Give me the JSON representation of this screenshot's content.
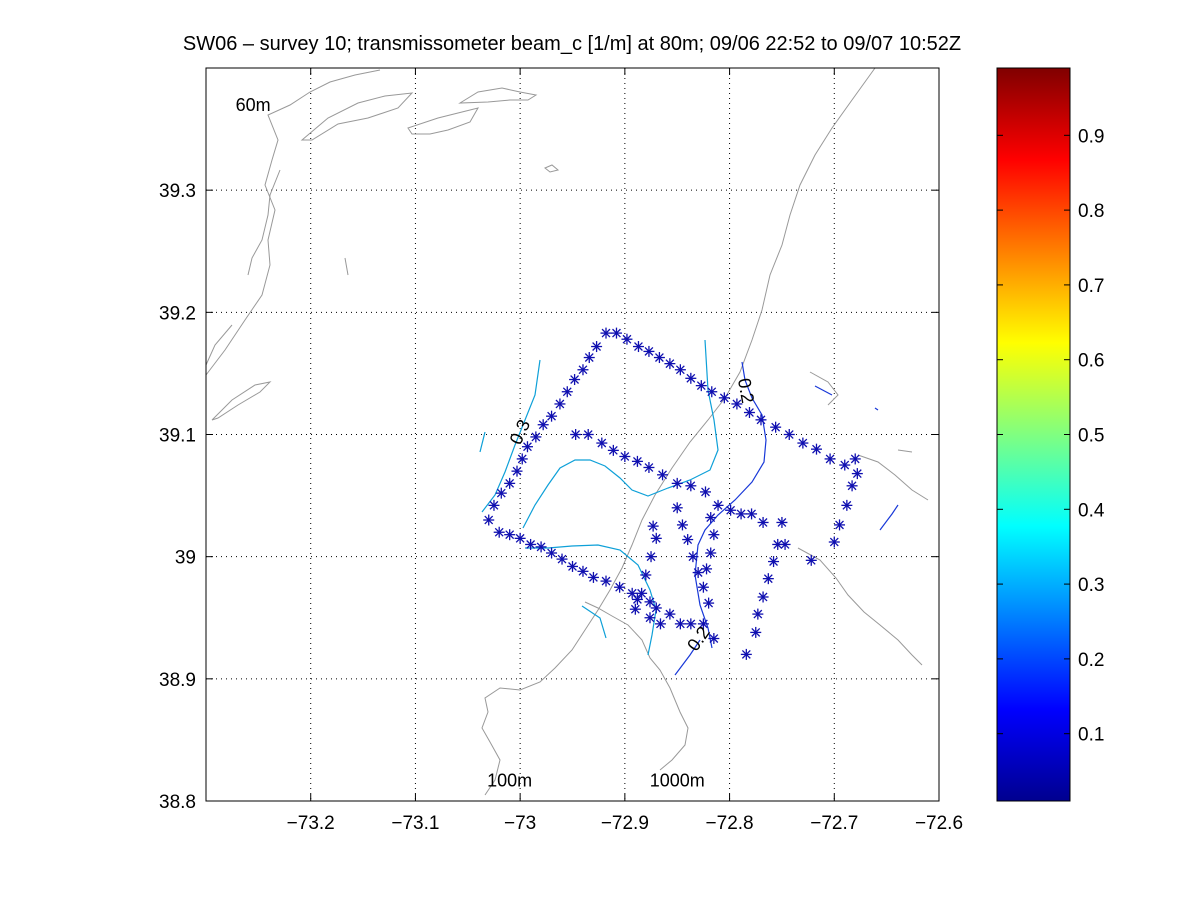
{
  "chart_data": {
    "type": "contour",
    "title": "SW06 – survey 10; transmissometer beam_c [1/m] at 80m; 09/06 22:52 to 09/07 10:52Z",
    "xlim": [
      -73.3,
      -72.6
    ],
    "ylim": [
      38.8,
      39.4
    ],
    "x_ticks": [
      -73.2,
      -73.1,
      -73.0,
      -72.9,
      -72.8,
      -72.7,
      -72.6
    ],
    "x_tick_labels": [
      "−73.2",
      "−73.1",
      "−73",
      "−72.9",
      "−72.8",
      "−72.7",
      "−72.6"
    ],
    "y_ticks": [
      38.8,
      38.9,
      39.0,
      39.1,
      39.2,
      39.3
    ],
    "y_tick_labels": [
      "38.8",
      "38.9",
      "39",
      "39.1",
      "39.2",
      "39.3"
    ],
    "grid": true,
    "colorbar": {
      "colormap": "jet",
      "range": [
        0.01,
        0.99
      ],
      "ticks": [
        0.1,
        0.2,
        0.3,
        0.4,
        0.5,
        0.6,
        0.7,
        0.8,
        0.9
      ],
      "tick_labels": [
        "0.1",
        "0.2",
        "0.3",
        "0.4",
        "0.5",
        "0.6",
        "0.7",
        "0.8",
        "0.9"
      ]
    },
    "bathymetry_labels": [
      {
        "text": "60m",
        "x": -73.255,
        "y": 39.365
      },
      {
        "text": "100m",
        "x": -73.01,
        "y": 38.812
      },
      {
        "text": "1000m",
        "x": -72.85,
        "y": 38.812
      }
    ],
    "contour_labels": [
      {
        "text": "0.3",
        "x": -72.995,
        "y": 39.1,
        "angle": -65
      },
      {
        "text": "0.2",
        "x": -72.825,
        "y": 38.93,
        "angle": -55
      },
      {
        "text": "0.2",
        "x": -72.79,
        "y": 39.135,
        "angle": 80
      }
    ],
    "stations": [
      [
        -73.03,
        39.03
      ],
      [
        -73.025,
        39.042
      ],
      [
        -73.018,
        39.052
      ],
      [
        -73.01,
        39.06
      ],
      [
        -73.003,
        39.07
      ],
      [
        -72.998,
        39.08
      ],
      [
        -72.993,
        39.09
      ],
      [
        -72.985,
        39.098
      ],
      [
        -72.978,
        39.108
      ],
      [
        -72.97,
        39.115
      ],
      [
        -72.962,
        39.125
      ],
      [
        -72.955,
        39.135
      ],
      [
        -72.948,
        39.145
      ],
      [
        -72.94,
        39.153
      ],
      [
        -72.934,
        39.163
      ],
      [
        -72.927,
        39.172
      ],
      [
        -72.918,
        39.183
      ],
      [
        -72.908,
        39.183
      ],
      [
        -72.898,
        39.178
      ],
      [
        -72.887,
        39.172
      ],
      [
        -72.877,
        39.168
      ],
      [
        -72.867,
        39.163
      ],
      [
        -72.857,
        39.158
      ],
      [
        -72.847,
        39.153
      ],
      [
        -72.837,
        39.146
      ],
      [
        -72.827,
        39.14
      ],
      [
        -72.817,
        39.135
      ],
      [
        -72.805,
        39.13
      ],
      [
        -72.793,
        39.125
      ],
      [
        -72.781,
        39.118
      ],
      [
        -72.77,
        39.112
      ],
      [
        -72.756,
        39.106
      ],
      [
        -72.743,
        39.1
      ],
      [
        -72.73,
        39.093
      ],
      [
        -72.717,
        39.088
      ],
      [
        -72.704,
        39.08
      ],
      [
        -72.69,
        39.075
      ],
      [
        -72.678,
        39.068
      ],
      [
        -72.68,
        39.08
      ],
      [
        -72.683,
        39.058
      ],
      [
        -72.688,
        39.042
      ],
      [
        -72.695,
        39.026
      ],
      [
        -72.7,
        39.012
      ],
      [
        -72.722,
        38.997
      ],
      [
        -72.747,
        39.01
      ],
      [
        -72.75,
        39.028
      ],
      [
        -72.768,
        39.028
      ],
      [
        -72.779,
        39.035
      ],
      [
        -72.789,
        39.035
      ],
      [
        -72.799,
        39.038
      ],
      [
        -72.811,
        39.042
      ],
      [
        -72.823,
        39.053
      ],
      [
        -72.837,
        39.058
      ],
      [
        -72.85,
        39.06
      ],
      [
        -72.864,
        39.067
      ],
      [
        -72.877,
        39.073
      ],
      [
        -72.888,
        39.078
      ],
      [
        -72.9,
        39.082
      ],
      [
        -72.911,
        39.087
      ],
      [
        -72.922,
        39.093
      ],
      [
        -72.935,
        39.1
      ],
      [
        -72.947,
        39.1
      ],
      [
        -73.02,
        39.02
      ],
      [
        -73.01,
        39.018
      ],
      [
        -73.0,
        39.015
      ],
      [
        -72.99,
        39.01
      ],
      [
        -72.98,
        39.008
      ],
      [
        -72.97,
        39.003
      ],
      [
        -72.96,
        38.998
      ],
      [
        -72.95,
        38.992
      ],
      [
        -72.94,
        38.988
      ],
      [
        -72.93,
        38.983
      ],
      [
        -72.918,
        38.98
      ],
      [
        -72.905,
        38.975
      ],
      [
        -72.893,
        38.97
      ],
      [
        -72.888,
        38.965
      ],
      [
        -72.876,
        38.963
      ],
      [
        -72.87,
        38.958
      ],
      [
        -72.857,
        38.953
      ],
      [
        -72.847,
        38.945
      ],
      [
        -72.837,
        38.945
      ],
      [
        -72.825,
        38.945
      ],
      [
        -72.815,
        38.933
      ],
      [
        -72.82,
        38.962
      ],
      [
        -72.825,
        38.975
      ],
      [
        -72.83,
        38.987
      ],
      [
        -72.835,
        39.0
      ],
      [
        -72.84,
        39.014
      ],
      [
        -72.845,
        39.026
      ],
      [
        -72.85,
        39.04
      ],
      [
        -72.873,
        39.025
      ],
      [
        -72.87,
        39.015
      ],
      [
        -72.875,
        39.0
      ],
      [
        -72.88,
        38.985
      ],
      [
        -72.884,
        38.97
      ],
      [
        -72.89,
        38.957
      ],
      [
        -72.876,
        38.95
      ],
      [
        -72.866,
        38.945
      ],
      [
        -72.784,
        38.92
      ],
      [
        -72.775,
        38.938
      ],
      [
        -72.773,
        38.953
      ],
      [
        -72.768,
        38.967
      ],
      [
        -72.763,
        38.982
      ],
      [
        -72.758,
        38.996
      ],
      [
        -72.754,
        39.01
      ],
      [
        -72.818,
        39.003
      ],
      [
        -72.815,
        39.018
      ],
      [
        -72.818,
        39.032
      ],
      [
        -72.822,
        38.99
      ]
    ]
  }
}
